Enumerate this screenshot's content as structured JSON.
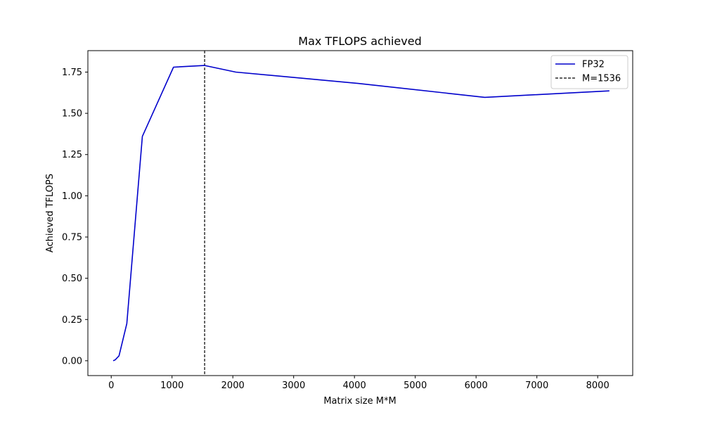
{
  "chart_data": {
    "type": "line",
    "title": "Max TFLOPS achieved",
    "xlabel": "Matrix size M*M",
    "ylabel": "Achieved TFLOPS",
    "xlim": [
      -384,
      8576
    ],
    "ylim": [
      -0.09,
      1.88
    ],
    "xticks": [
      0,
      1000,
      2000,
      3000,
      4000,
      5000,
      6000,
      7000,
      8000
    ],
    "yticks": [
      0.0,
      0.25,
      0.5,
      0.75,
      1.0,
      1.25,
      1.5,
      1.75
    ],
    "grid": false,
    "legend_position": "top-right",
    "series": [
      {
        "name": "FP32",
        "color": "#0000cc",
        "style": "solid",
        "x": [
          32,
          64,
          128,
          256,
          512,
          1024,
          1536,
          2048,
          4096,
          6144,
          8192
        ],
        "y": [
          0.0,
          0.005,
          0.03,
          0.225,
          1.36,
          1.78,
          1.79,
          1.75,
          1.68,
          1.597,
          1.636
        ]
      }
    ],
    "vlines": [
      {
        "name": "M=1536",
        "x": 1536,
        "color": "#000000",
        "style": "dashed"
      }
    ]
  }
}
